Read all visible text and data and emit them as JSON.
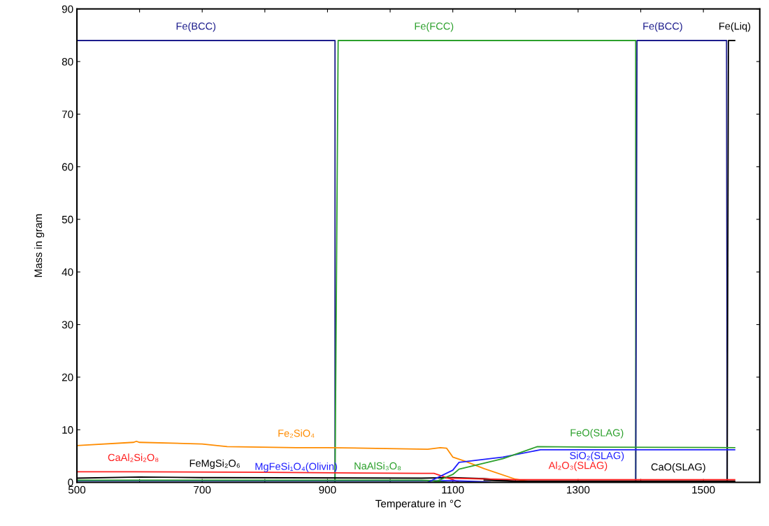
{
  "chart_data": {
    "type": "line",
    "xlabel": "Temperature in °C",
    "ylabel": "Mass in gram",
    "xlim": [
      500,
      1590
    ],
    "ylim": [
      0,
      90
    ],
    "xticks": [
      500,
      {
        "value": 600,
        "label": null
      },
      700,
      {
        "value": 800,
        "label": null
      },
      900,
      {
        "value": 1000,
        "label": null
      },
      1100,
      {
        "value": 1200,
        "label": null
      },
      1300,
      {
        "value": 1400,
        "label": null
      },
      1500
    ],
    "yticks": [
      0,
      10,
      20,
      30,
      40,
      50,
      60,
      70,
      80,
      90
    ],
    "grid": false,
    "marker": "none",
    "line_style": "solid",
    "series": [
      {
        "color": "#1c1c8c",
        "x": [
          500,
          690,
          912,
          912
        ],
        "values": [
          84,
          84,
          84,
          0
        ]
      },
      {
        "color": "#2ca02c",
        "x": [
          912,
          917,
          1070,
          1392,
          1392
        ],
        "values": [
          0,
          84,
          84,
          84,
          0
        ]
      },
      {
        "color": "#1c1c8c",
        "x": [
          1392,
          1394,
          1435,
          1537,
          1538
        ],
        "values": [
          0,
          84,
          84,
          84,
          0
        ]
      },
      {
        "color": "#000000",
        "x": [
          1538,
          1540,
          1550
        ],
        "values": [
          0,
          84,
          84
        ]
      },
      {
        "color": "#ff8c00",
        "x": [
          500,
          590,
          595,
          600,
          700,
          740,
          850,
          900,
          1060,
          1080,
          1090,
          1100,
          1120,
          1150,
          1200,
          1230
        ],
        "values": [
          7.0,
          7.6,
          7.8,
          7.6,
          7.3,
          6.8,
          6.6,
          6.6,
          6.3,
          6.6,
          6.5,
          4.8,
          4.0,
          2.6,
          0.6,
          0
        ]
      },
      {
        "color": "#ff2020",
        "x": [
          500,
          590,
          800,
          1050,
          1070,
          1100,
          1110
        ],
        "values": [
          2.0,
          2.0,
          1.9,
          1.7,
          1.7,
          0.5,
          0
        ]
      },
      {
        "color": "#000000",
        "x": [
          500,
          600,
          700,
          720,
          1050,
          1100,
          1150,
          1200,
          1210
        ],
        "values": [
          0.8,
          1.0,
          0.9,
          0.9,
          0.8,
          0.9,
          0.7,
          0.2,
          0
        ]
      },
      {
        "color": "#2020ff",
        "x": [
          500,
          850,
          1050,
          1100,
          1150,
          1160
        ],
        "values": [
          0.3,
          0.3,
          0.3,
          0.3,
          0.1,
          0
        ]
      },
      {
        "color": "#2ca02c",
        "x": [
          500,
          600,
          980,
          1050,
          1070,
          1090
        ],
        "values": [
          0.4,
          0.4,
          0.4,
          0.4,
          0.3,
          0
        ]
      },
      {
        "color": "#2020ff",
        "x": [
          1060,
          1100,
          1110,
          1180,
          1240,
          1330,
          1550
        ],
        "values": [
          0,
          2.3,
          3.8,
          4.8,
          6.2,
          6.2,
          6.2
        ]
      },
      {
        "color": "#2ca02c",
        "x": [
          1070,
          1100,
          1110,
          1180,
          1235,
          1330,
          1550
        ],
        "values": [
          0,
          1.5,
          2.5,
          4.5,
          6.8,
          6.7,
          6.6
        ]
      },
      {
        "color": "#ff2020",
        "x": [
          1090,
          1200,
          1300,
          1550
        ],
        "values": [
          0.8,
          0.5,
          0.5,
          0.5
        ]
      },
      {
        "color": "#000000",
        "x": [
          1150,
          1200,
          1460,
          1550
        ],
        "values": [
          0.4,
          0.2,
          0.2,
          0.2
        ]
      }
    ],
    "annotations": [
      {
        "text": "Fe(BCC)",
        "x": 690,
        "y": 84
      },
      {
        "text": "Fe(FCC)",
        "x": 1070,
        "y": 84
      },
      {
        "text": "Fe(BCC)",
        "x": 1435,
        "y": 84
      },
      {
        "text": "Fe(Liq)",
        "x": 1550,
        "y": 84
      },
      {
        "text": "Fe₂SiO₄",
        "x": 850,
        "y": 6.6
      },
      {
        "text": "CaAl₂Si₂O₈",
        "x": 590,
        "y": 2.0
      },
      {
        "text": "FeMgSi₂O₆",
        "x": 720,
        "y": 0.9
      },
      {
        "text": "MgFeSi₁O₄(Olivin)",
        "x": 850,
        "y": 0.3
      },
      {
        "text": "NaAlSi₃O₈",
        "x": 980,
        "y": 0.4
      },
      {
        "text": "FeO(SLAG)",
        "x": 1330,
        "y": 6.7
      },
      {
        "text": "SiO₂(SLAG)",
        "x": 1330,
        "y": 6.2
      },
      {
        "text": "Al₂O₃(SLAG)",
        "x": 1300,
        "y": 0.5
      },
      {
        "text": "CaO(SLAG)",
        "x": 1460,
        "y": 0.2
      }
    ]
  }
}
